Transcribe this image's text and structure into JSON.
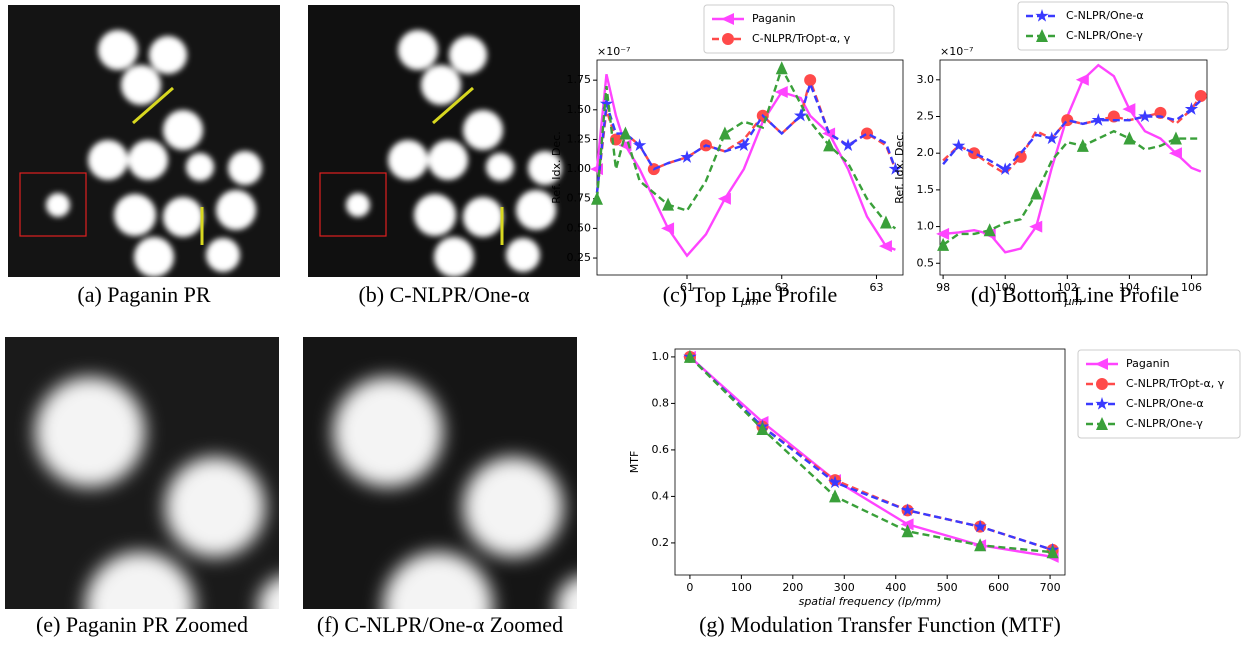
{
  "captions": [
    "(a) Paganin PR",
    "(b) C-NLPR/One-α",
    "(c) Top Line Profile",
    "(d) Bottom Line Profile",
    "(e) Paganin PR Zoomed",
    "(f) C-NLPR/One-α Zoomed",
    "(g) Modulation Transfer Function (MTF)"
  ],
  "chart_data": [
    {
      "type": "line",
      "y_offset_label": "×10⁻⁷",
      "x_label": "μm",
      "y_label": "Ref. Idx. Dec.",
      "legend_position": "top",
      "legend_series": [
        0,
        1
      ],
      "x": [
        60.05,
        60.15,
        60.25,
        60.35,
        60.5,
        60.65,
        60.8,
        61.0,
        61.2,
        61.4,
        61.6,
        61.8,
        62.0,
        62.2,
        62.3,
        62.5,
        62.7,
        62.9,
        63.1,
        63.2
      ],
      "xlim": [
        60.05,
        63.28
      ],
      "xticks": [
        61,
        62,
        63
      ],
      "ylim": [
        0.107,
        1.92
      ],
      "yticks": [
        {
          "value": 0.25,
          "label": "0.25"
        },
        {
          "value": 0.5,
          "label": "0.50"
        },
        {
          "value": 0.75,
          "label": "0.75"
        },
        {
          "value": 1.0,
          "label": "1.00"
        },
        {
          "value": 1.25,
          "label": "1.25"
        },
        {
          "value": 1.5,
          "label": "1.50"
        },
        {
          "value": 1.75,
          "label": "1.75"
        }
      ],
      "series": [
        {
          "name": "Paganin",
          "color": "#ff44ff",
          "linestyle": "solid",
          "marker": "left-triangle",
          "values": [
            1.0,
            1.8,
            1.45,
            1.2,
            1.0,
            0.75,
            0.5,
            0.27,
            0.45,
            0.75,
            1.0,
            1.4,
            1.65,
            1.6,
            1.45,
            1.3,
            1.0,
            0.6,
            0.35,
            0.32
          ]
        },
        {
          "name": "C-NLPR/TrOpt-α, γ",
          "color": "#ff4a4a",
          "linestyle": "dashed",
          "marker": "circle",
          "values": [
            0.8,
            1.5,
            1.25,
            1.3,
            1.2,
            1.0,
            1.05,
            1.1,
            1.2,
            1.15,
            1.25,
            1.45,
            1.3,
            1.45,
            1.75,
            1.3,
            1.2,
            1.3,
            1.2,
            1.0
          ]
        },
        {
          "name": "C-NLPR/One-α",
          "color": "#3a3aff",
          "linestyle": "dashed",
          "marker": "star",
          "values": [
            0.8,
            1.55,
            1.3,
            1.3,
            1.2,
            1.0,
            1.05,
            1.1,
            1.2,
            1.15,
            1.2,
            1.45,
            1.3,
            1.45,
            1.72,
            1.3,
            1.2,
            1.3,
            1.22,
            1.0
          ]
        },
        {
          "name": "C-NLPR/One-γ",
          "color": "#3aa03a",
          "linestyle": "dashed",
          "marker": "triangle",
          "values": [
            0.75,
            1.7,
            1.0,
            1.3,
            0.9,
            0.8,
            0.7,
            0.65,
            0.9,
            1.3,
            1.4,
            1.35,
            1.85,
            1.55,
            1.4,
            1.2,
            1.05,
            0.75,
            0.55,
            0.5
          ]
        }
      ]
    },
    {
      "type": "line",
      "y_offset_label": "×10⁻⁷",
      "x_label": "μm",
      "y_label": "Ref. Idx. Dec.",
      "legend_position": "top",
      "legend_series": [
        2,
        3
      ],
      "x": [
        98.0,
        98.5,
        99.0,
        99.5,
        100.0,
        100.5,
        101.0,
        101.5,
        102.0,
        102.5,
        103.0,
        103.5,
        104.0,
        104.5,
        105.0,
        105.5,
        106.0,
        106.3
      ],
      "xlim": [
        97.9,
        106.5
      ],
      "xticks": [
        98,
        100,
        102,
        104,
        106
      ],
      "ylim": [
        0.34,
        3.27
      ],
      "yticks": [
        {
          "value": 0.5,
          "label": "0.5"
        },
        {
          "value": 1.0,
          "label": "1.0"
        },
        {
          "value": 1.5,
          "label": "1.5"
        },
        {
          "value": 2.0,
          "label": "2.0"
        },
        {
          "value": 2.5,
          "label": "2.5"
        },
        {
          "value": 3.0,
          "label": "3.0"
        }
      ],
      "series": [
        {
          "name": "Paganin",
          "color": "#ff44ff",
          "linestyle": "solid",
          "marker": "left-triangle",
          "values": [
            0.9,
            0.92,
            0.95,
            0.9,
            0.65,
            0.7,
            1.0,
            1.8,
            2.5,
            3.0,
            3.2,
            3.05,
            2.6,
            2.3,
            2.2,
            2.0,
            1.8,
            1.75
          ]
        },
        {
          "name": "C-NLPR/TrOpt-α, γ",
          "color": "#ff4a4a",
          "linestyle": "dashed",
          "marker": "circle",
          "values": [
            1.9,
            2.1,
            2.0,
            1.85,
            1.72,
            1.95,
            2.3,
            2.2,
            2.45,
            2.4,
            2.45,
            2.5,
            2.45,
            2.5,
            2.55,
            2.4,
            2.6,
            2.78
          ]
        },
        {
          "name": "C-NLPR/One-α",
          "color": "#3a3aff",
          "linestyle": "dashed",
          "marker": "star",
          "values": [
            1.85,
            2.1,
            2.0,
            1.9,
            1.78,
            2.0,
            2.25,
            2.2,
            2.45,
            2.4,
            2.45,
            2.45,
            2.45,
            2.5,
            2.5,
            2.45,
            2.6,
            2.72
          ]
        },
        {
          "name": "C-NLPR/One-γ",
          "color": "#3aa03a",
          "linestyle": "dashed",
          "marker": "triangle",
          "values": [
            0.75,
            0.9,
            0.9,
            0.95,
            1.05,
            1.1,
            1.45,
            1.9,
            2.15,
            2.1,
            2.2,
            2.3,
            2.2,
            2.05,
            2.1,
            2.2,
            2.2,
            2.2
          ]
        }
      ]
    },
    {
      "type": "line",
      "x_label": "spatial frequency (lp/mm)",
      "y_label": "MTF",
      "legend_position": "right",
      "legend_series": [
        0,
        1,
        2,
        3
      ],
      "x": [
        0,
        141,
        282,
        423,
        564,
        705
      ],
      "xlim": [
        -29,
        729
      ],
      "xticks": [
        0,
        100,
        200,
        300,
        400,
        500,
        600,
        700
      ],
      "ylim": [
        0.062,
        1.034
      ],
      "yticks": [
        {
          "value": 0.2,
          "label": "0.2"
        },
        {
          "value": 0.4,
          "label": "0.4"
        },
        {
          "value": 0.6,
          "label": "0.6"
        },
        {
          "value": 0.8,
          "label": "0.8"
        },
        {
          "value": 1.0,
          "label": "1.0"
        }
      ],
      "series": [
        {
          "name": "Paganin",
          "color": "#ff44ff",
          "linestyle": "solid",
          "marker": "left-triangle",
          "values": [
            1.0,
            0.72,
            0.47,
            0.28,
            0.19,
            0.14
          ]
        },
        {
          "name": "C-NLPR/TrOpt-α, γ",
          "color": "#ff4a4a",
          "linestyle": "dashed",
          "marker": "circle",
          "values": [
            1.0,
            0.7,
            0.47,
            0.34,
            0.27,
            0.17
          ]
        },
        {
          "name": "C-NLPR/One-α",
          "color": "#3a3aff",
          "linestyle": "dashed",
          "marker": "star",
          "values": [
            1.0,
            0.7,
            0.46,
            0.34,
            0.27,
            0.17
          ]
        },
        {
          "name": "C-NLPR/One-γ",
          "color": "#3aa03a",
          "linestyle": "dashed",
          "marker": "triangle",
          "values": [
            1.0,
            0.69,
            0.4,
            0.25,
            0.19,
            0.16
          ]
        }
      ]
    }
  ]
}
